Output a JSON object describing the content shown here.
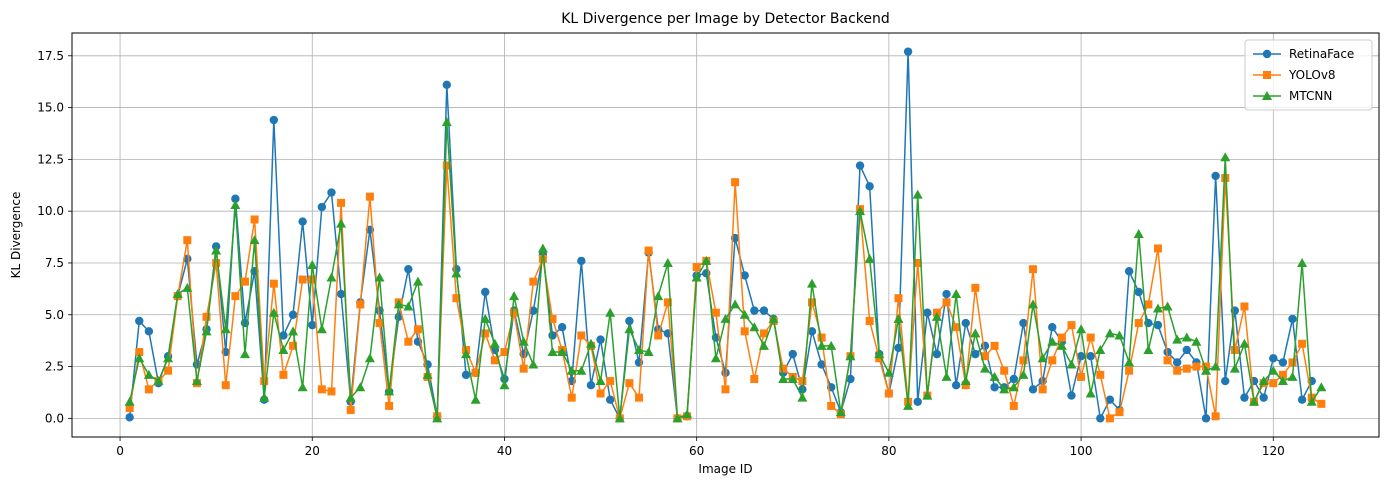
{
  "chart_data": {
    "type": "line",
    "title": "KL Divergence per Image by Detector Backend",
    "xlabel": "Image ID",
    "ylabel": "KL Divergence",
    "xlim": [
      -5,
      131
    ],
    "ylim": [
      -0.9,
      18.6
    ],
    "xticks": [
      0,
      20,
      40,
      60,
      80,
      100,
      120
    ],
    "yticks": [
      0.0,
      2.5,
      5.0,
      7.5,
      10.0,
      12.5,
      15.0,
      17.5
    ],
    "ytick_labels": [
      "0.0",
      "2.5",
      "5.0",
      "7.5",
      "10.0",
      "12.5",
      "15.0",
      "17.5"
    ],
    "grid": true,
    "legend_position": "top-right",
    "series": [
      {
        "name": "RetinaFace",
        "color": "#1f77b4",
        "marker": "circle",
        "values": [
          0.05,
          4.7,
          4.2,
          1.7,
          3.0,
          5.9,
          7.7,
          2.6,
          4.3,
          8.3,
          3.2,
          10.6,
          4.6,
          7.1,
          0.9,
          14.4,
          4.0,
          5.0,
          9.5,
          4.5,
          10.2,
          10.9,
          6.0,
          0.8,
          5.6,
          9.1,
          5.2,
          1.3,
          4.9,
          7.2,
          3.7,
          2.6,
          0.1,
          16.1,
          7.2,
          2.1,
          2.2,
          6.1,
          3.3,
          1.9,
          5.2,
          3.1,
          5.2,
          7.9,
          4.0,
          4.4,
          1.8,
          7.6,
          1.6,
          3.8,
          0.9,
          0.0,
          4.7,
          2.7,
          8.0,
          4.3,
          4.1,
          0.0,
          0.1,
          6.9,
          7.0,
          3.9,
          2.2,
          8.7,
          6.9,
          5.2,
          5.2,
          4.8,
          2.2,
          3.1,
          1.4,
          4.2,
          2.6,
          1.5,
          0.3,
          1.9,
          12.2,
          11.2,
          3.1,
          1.2,
          3.4,
          17.7,
          0.8,
          5.1,
          3.1,
          6.0,
          1.6,
          4.6,
          3.1,
          3.5,
          1.5,
          1.5,
          1.9,
          4.6,
          1.4,
          1.8,
          4.4,
          3.7,
          1.1,
          3.0,
          3.0,
          0.0,
          0.9,
          0.4,
          7.1,
          6.1,
          4.6,
          4.5,
          3.2,
          2.7,
          3.3,
          2.7,
          0.0,
          11.7,
          1.8,
          5.2,
          1.0,
          1.8,
          1.0,
          2.9,
          2.7,
          4.8,
          0.9,
          1.8
        ]
      },
      {
        "name": "YOLOv8",
        "color": "#ff7f0e",
        "marker": "square",
        "values": [
          0.5,
          3.2,
          1.4,
          1.8,
          2.3,
          5.9,
          8.6,
          1.7,
          4.9,
          7.5,
          1.6,
          5.9,
          6.6,
          9.6,
          1.8,
          6.5,
          2.1,
          3.5,
          6.7,
          6.7,
          1.4,
          1.3,
          10.4,
          0.4,
          5.5,
          10.7,
          4.6,
          0.6,
          5.6,
          3.7,
          4.3,
          2.0,
          0.1,
          12.2,
          5.8,
          3.3,
          2.2,
          4.1,
          2.8,
          3.2,
          5.1,
          2.4,
          6.6,
          7.7,
          4.8,
          3.3,
          1.0,
          4.0,
          3.5,
          1.2,
          1.8,
          0.0,
          1.7,
          1.0,
          8.1,
          4.0,
          5.6,
          0.0,
          0.1,
          7.3,
          7.6,
          5.1,
          1.4,
          11.4,
          4.2,
          1.9,
          4.1,
          4.7,
          2.4,
          2.0,
          1.8,
          5.6,
          3.9,
          0.6,
          0.2,
          3.0,
          10.1,
          4.7,
          2.9,
          1.2,
          5.8,
          0.8,
          7.5,
          1.1,
          5.1,
          5.6,
          4.4,
          1.6,
          6.3,
          3.0,
          3.5,
          2.3,
          0.6,
          2.8,
          7.2,
          1.4,
          2.8,
          3.9,
          4.5,
          2.0,
          3.9,
          2.1,
          0.0,
          0.3,
          2.3,
          4.6,
          5.5,
          8.2,
          2.8,
          2.3,
          2.4,
          2.5,
          2.5,
          0.1,
          11.6,
          3.3,
          5.4,
          0.8,
          1.7,
          1.7,
          2.1,
          2.7,
          3.6,
          1.0,
          0.7
        ]
      },
      {
        "name": "MTCNN",
        "color": "#2ca02c",
        "marker": "triangle",
        "values": [
          0.8,
          2.9,
          2.1,
          1.8,
          2.9,
          6.0,
          6.3,
          1.8,
          4.2,
          8.1,
          4.3,
          10.3,
          3.1,
          8.6,
          1.0,
          5.1,
          3.3,
          4.2,
          1.5,
          7.4,
          4.3,
          6.8,
          9.4,
          1.0,
          1.5,
          2.9,
          6.8,
          1.3,
          5.5,
          5.4,
          6.6,
          2.1,
          0.0,
          14.3,
          7.0,
          3.1,
          0.9,
          4.8,
          3.6,
          1.6,
          5.9,
          3.7,
          2.6,
          8.2,
          3.2,
          3.2,
          2.3,
          2.3,
          3.6,
          1.8,
          5.1,
          0.0,
          4.3,
          3.3,
          3.2,
          5.9,
          7.5,
          0.0,
          0.2,
          6.8,
          7.6,
          2.9,
          4.8,
          5.5,
          5.0,
          4.4,
          3.5,
          4.8,
          1.9,
          1.9,
          1.0,
          6.5,
          3.5,
          3.5,
          0.3,
          3.0,
          10.0,
          7.7,
          3.1,
          2.2,
          4.8,
          0.6,
          10.8,
          1.1,
          4.9,
          2.0,
          6.0,
          1.8,
          4.1,
          2.4,
          2.0,
          1.4,
          1.5,
          2.1,
          5.5,
          2.9,
          3.7,
          3.5,
          2.6,
          4.3,
          1.2,
          3.3,
          4.1,
          4.0,
          2.7,
          8.9,
          3.3,
          5.3,
          5.4,
          3.8,
          3.9,
          3.7,
          2.3,
          2.5,
          12.6,
          2.4,
          3.6,
          0.8,
          1.8,
          2.3,
          1.8,
          2.0,
          7.5,
          0.8,
          1.5
        ]
      }
    ]
  }
}
